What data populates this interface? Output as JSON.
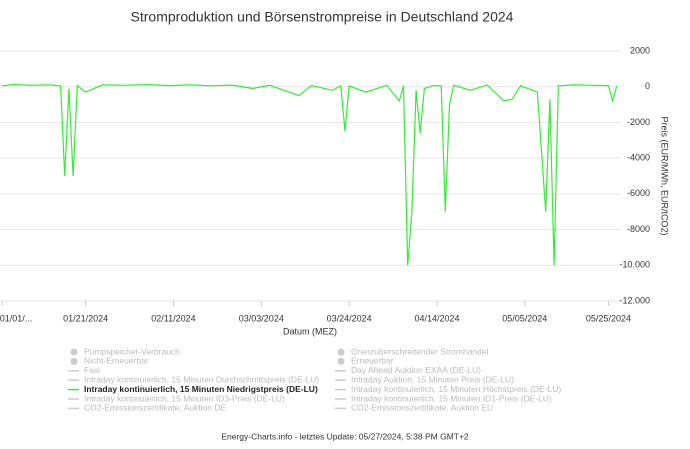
{
  "chart_data": {
    "type": "line",
    "title": "Stromproduktion und Börsenstrompreise in Deutschland 2024",
    "x_label": "Datum (MEZ)",
    "y_label": "Preis (EUR/MWh, EUR/tCO2)",
    "footer": "Energy-Charts.info - letztes Update: 05/27/2024, 5:38 PM GMT+2",
    "grid": true,
    "xlim": [
      "2024-01-01",
      "2024-05-28"
    ],
    "xticks": [
      {
        "value": "2024-01-01",
        "label": "01/01/..."
      },
      {
        "value": "2024-01-21",
        "label": "01/21/2024"
      },
      {
        "value": "2024-02-11",
        "label": "02/11/2024"
      },
      {
        "value": "2024-03-03",
        "label": "03/03/2024"
      },
      {
        "value": "2024-03-24",
        "label": "03/24/2024"
      },
      {
        "value": "2024-04-14",
        "label": "04/14/2024"
      },
      {
        "value": "2024-05-05",
        "label": "05/05/2024"
      },
      {
        "value": "2024-05-25",
        "label": "05/25/2024"
      }
    ],
    "ylim": [
      -12000,
      2000
    ],
    "yticks": [
      2000,
      0,
      -2000,
      -4000,
      -6000,
      -8000,
      {
        "value": -10000,
        "label": "-10.000"
      },
      {
        "value": -12000,
        "label": "-12.000"
      }
    ],
    "x": [
      "2024-01-01",
      "2024-01-04",
      "2024-01-08",
      "2024-01-12",
      "2024-01-15",
      "2024-01-16",
      "2024-01-17",
      "2024-01-18",
      "2024-01-19",
      "2024-01-21",
      "2024-01-25",
      "2024-01-30",
      "2024-02-05",
      "2024-02-10",
      "2024-02-15",
      "2024-02-20",
      "2024-02-25",
      "2024-03-01",
      "2024-03-05",
      "2024-03-12",
      "2024-03-15",
      "2024-03-20",
      "2024-03-22",
      "2024-03-23",
      "2024-03-24",
      "2024-03-28",
      "2024-04-02",
      "2024-04-05",
      "2024-04-06",
      "2024-04-07",
      "2024-04-08",
      "2024-04-09",
      "2024-04-10",
      "2024-04-11",
      "2024-04-13",
      "2024-04-15",
      "2024-04-16",
      "2024-04-17",
      "2024-04-18",
      "2024-04-22",
      "2024-04-26",
      "2024-04-30",
      "2024-05-02",
      "2024-05-04",
      "2024-05-08",
      "2024-05-10",
      "2024-05-11",
      "2024-05-12",
      "2024-05-13",
      "2024-05-17",
      "2024-05-21",
      "2024-05-25",
      "2024-05-26",
      "2024-05-27"
    ],
    "series": [
      {
        "name": "Intraday kontinuierlich, 15 Minuten Niedrigstpreis (DE-LU)",
        "color": "#33ee33",
        "values": [
          50,
          120,
          80,
          100,
          50,
          -5000,
          -100,
          -5000,
          60,
          -300,
          100,
          80,
          120,
          60,
          100,
          50,
          90,
          -100,
          80,
          -500,
          70,
          -200,
          50,
          -2500,
          40,
          -300,
          80,
          -800,
          50,
          -10000,
          -7000,
          -200,
          -2600,
          -100,
          60,
          50,
          -7000,
          -1000,
          80,
          -200,
          100,
          -800,
          -700,
          50,
          -300,
          -7000,
          -700,
          -10000,
          50,
          100,
          80,
          60,
          -800,
          50
        ]
      }
    ],
    "legend": [
      {
        "name": "Pumpspeicher-Verbrauch",
        "marker": "circle"
      },
      {
        "name": "Grenzüberschreitender Stromhandel",
        "marker": "circle"
      },
      {
        "name": "Nicht-Erneuerbar",
        "marker": "circle"
      },
      {
        "name": "Erneuerbar",
        "marker": "circle"
      },
      {
        "name": "Fasi",
        "marker": "line"
      },
      {
        "name": "Day Ahead Auktion EXAA (DE-LU)",
        "marker": "line"
      },
      {
        "name": "Intraday kontinuierlich, 15 Minuten Durchschnittspreis (DE-LU)",
        "marker": "line"
      },
      {
        "name": "Intraday Auktion, 15 Minuten Preis (DE-LU)",
        "marker": "line"
      },
      {
        "series": 0
      },
      {
        "name": "Intraday kontinuierlich, 15 Minuten Höchstpreis (DE-LU)",
        "marker": "line"
      },
      {
        "name": "Intraday kontinuierlich, 15 Minuten ID3-Preis (DE-LU)",
        "marker": "line"
      },
      {
        "name": "Intraday kontinuierlich, 15 Minuten ID1-Preis (DE-LU)",
        "marker": "line"
      },
      {
        "name": "CO2-Emissionszertifikate, Auktion DE",
        "marker": "line"
      },
      {
        "name": "CO2-Emissionszertifikate, Auktion EU",
        "marker": "line"
      }
    ]
  }
}
